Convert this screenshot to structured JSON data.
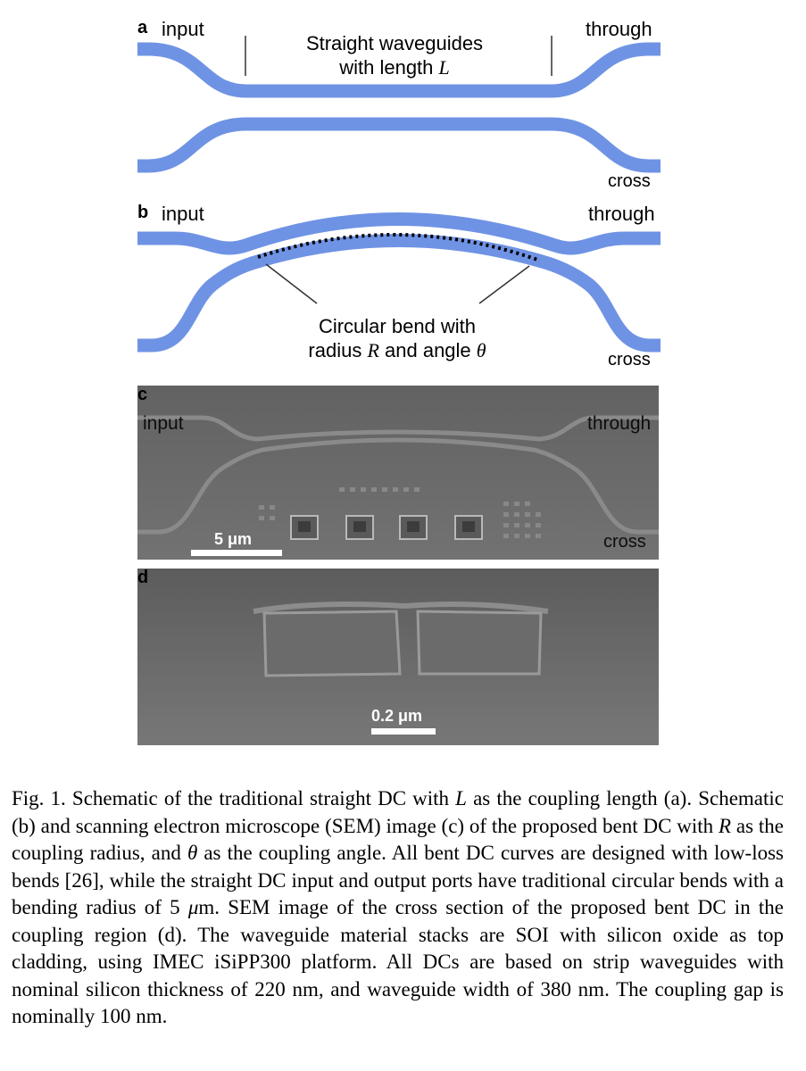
{
  "figure": {
    "panel_a": {
      "letter": "a",
      "input": "input",
      "through": "through",
      "cross": "cross",
      "annotation_line1": "Straight waveguides",
      "annotation_line2_prefix": "with length ",
      "annotation_symbol": "L"
    },
    "panel_b": {
      "letter": "b",
      "input": "input",
      "through": "through",
      "cross": "cross",
      "annotation_line1": "Circular bend with",
      "annotation_line2_prefix": "radius ",
      "annotation_symbol_r": "R",
      "annotation_line2_mid": " and angle ",
      "annotation_symbol_theta": "θ"
    },
    "panel_c": {
      "letter": "c",
      "input": "input",
      "through": "through",
      "cross": "cross",
      "scale_bar": "5 μm"
    },
    "panel_d": {
      "letter": "d",
      "scale_bar": "0.2 μm"
    },
    "colors": {
      "waveguide": "#6f93e4",
      "sem_background": "#6e6e6e"
    }
  },
  "caption": {
    "s1": "Fig. 1.  Schematic of the traditional straight DC with ",
    "s1_sym": "L",
    "s2": " as the coupling length (a). Schematic (b) and scanning electron microscope (SEM) image (c) of the proposed bent DC with ",
    "s2_sym": "R",
    "s3": " as the coupling radius, and ",
    "s3_sym": "θ",
    "s4": " as the coupling angle. All bent DC curves are designed with low-loss bends [26], while the straight DC input and output ports have traditional circular bends with a bending radius of 5 ",
    "s4_sym": "μ",
    "s5": "m. SEM image of the cross section of the proposed bent DC in the coupling region (d). The waveguide material stacks are SOI with silicon oxide as top cladding, using IMEC iSiPP300 platform. All DCs are based on strip waveguides with nominal silicon thickness of 220 nm, and waveguide width of 380 nm. The coupling gap is nominally 100 nm."
  }
}
